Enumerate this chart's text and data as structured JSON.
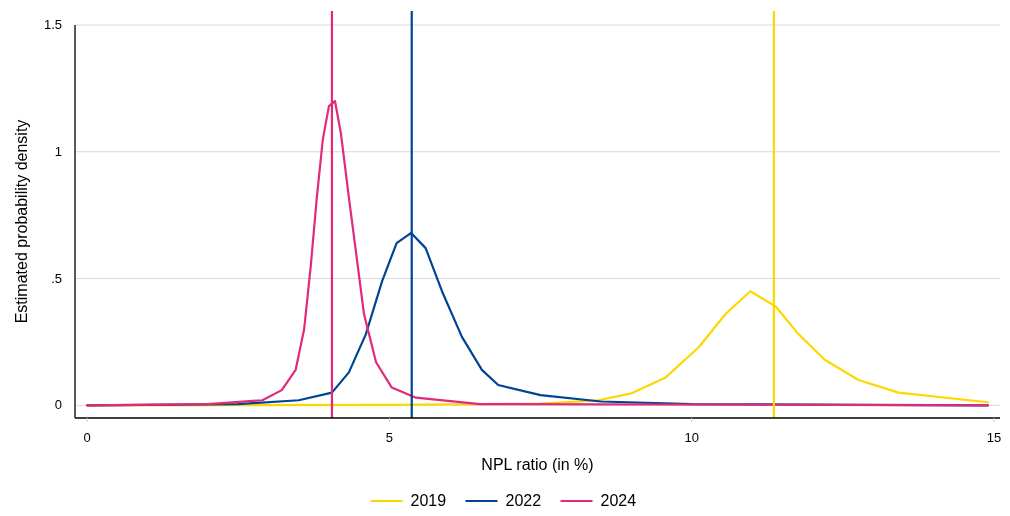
{
  "chart_data": {
    "type": "line",
    "xlabel": "NPL ratio (in %)",
    "ylabel": "Estimated probability density",
    "xlim": [
      -0.2,
      15.1
    ],
    "ylim": [
      -0.05,
      1.5
    ],
    "xticks": [
      0,
      5,
      10,
      15
    ],
    "yticks": [
      {
        "value": 0,
        "label": "0"
      },
      {
        "value": 0.5,
        "label": ".5"
      },
      {
        "value": 1,
        "label": "1"
      },
      {
        "value": 1.5,
        "label": "1.5"
      }
    ],
    "grid": "y",
    "legend": "bottom",
    "marker": "none",
    "line_style": "solid",
    "series": [
      {
        "name": "2019",
        "color": "#ffd700",
        "x": [
          0,
          5,
          7.5,
          8.46,
          9.0,
          9.57,
          10.12,
          10.56,
          10.97,
          11.39,
          11.77,
          12.2,
          12.76,
          13.42,
          14.9
        ],
        "values": [
          0,
          0.002,
          0.007,
          0.02,
          0.047,
          0.11,
          0.23,
          0.36,
          0.45,
          0.39,
          0.28,
          0.18,
          0.1,
          0.05,
          0.012
        ]
      },
      {
        "name": "2022",
        "color": "#004494",
        "x": [
          0,
          2.5,
          3.5,
          4.05,
          4.33,
          4.61,
          4.88,
          5.12,
          5.36,
          5.6,
          5.87,
          6.2,
          6.53,
          6.8,
          7.5,
          8.5,
          10,
          14.9
        ],
        "values": [
          0,
          0.005,
          0.02,
          0.05,
          0.13,
          0.28,
          0.49,
          0.64,
          0.68,
          0.62,
          0.45,
          0.27,
          0.14,
          0.08,
          0.04,
          0.015,
          0.005,
          0
        ]
      },
      {
        "name": "2024",
        "color": "#e2297c",
        "x": [
          0,
          2,
          2.9,
          3.22,
          3.45,
          3.59,
          3.7,
          3.8,
          3.9,
          4.0,
          4.1,
          4.2,
          4.33,
          4.45,
          4.58,
          4.78,
          5.04,
          5.44,
          6.5,
          14.9
        ],
        "values": [
          0,
          0.005,
          0.02,
          0.06,
          0.14,
          0.3,
          0.55,
          0.82,
          1.05,
          1.18,
          1.2,
          1.07,
          0.82,
          0.6,
          0.36,
          0.17,
          0.07,
          0.03,
          0.005,
          0
        ]
      }
    ],
    "ref_lines": [
      {
        "axis": "x",
        "value": 11.36,
        "color": "#ffd700"
      },
      {
        "axis": "x",
        "value": 5.37,
        "color": "#004494"
      },
      {
        "axis": "x",
        "value": 4.05,
        "color": "#e2297c"
      }
    ]
  }
}
